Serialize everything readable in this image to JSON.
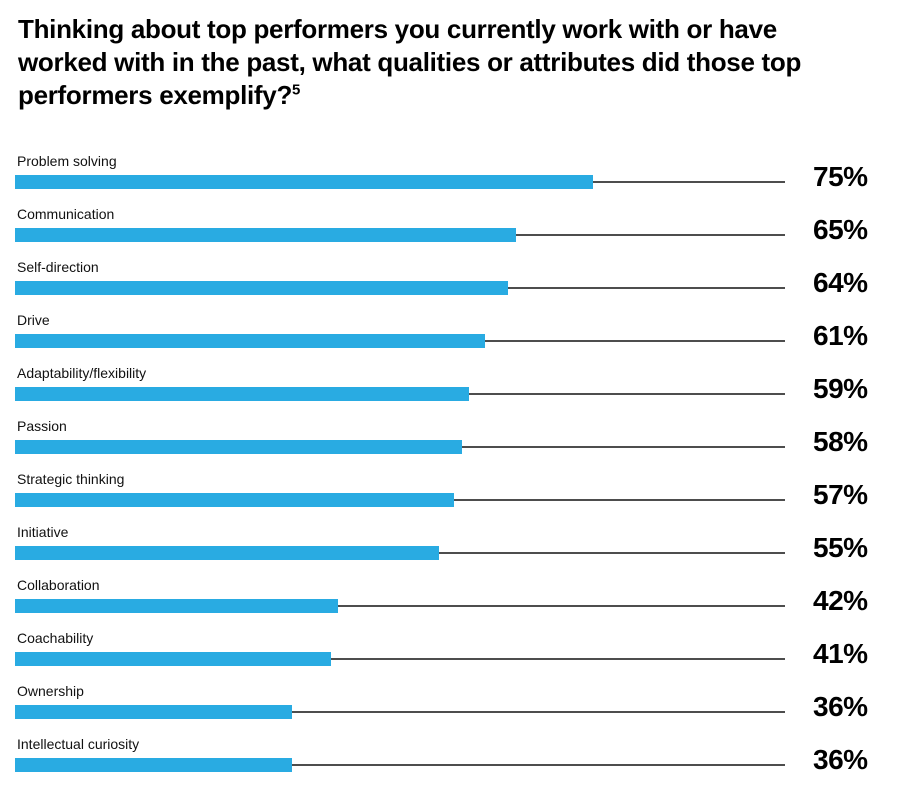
{
  "header": {
    "title_lines": [
      "Thinking about top performers you currently work with or have",
      "worked with in the past, what qualities or attributes did those top",
      "performers exemplify?"
    ],
    "footnote_marker": "5"
  },
  "colors": {
    "bar": "#29ABE2",
    "leader_line": "#4d4d4d",
    "title_text": "#000000",
    "label_text": "#111111"
  },
  "chart_data": {
    "type": "bar",
    "orientation": "horizontal",
    "title": "Thinking about top performers you currently work with or have worked with in the past, what qualities or attributes did those top performers exemplify?",
    "footnote_marker": "5",
    "categories": [
      "Problem solving",
      "Communication",
      "Self-direction",
      "Drive",
      "Adaptability/flexibility",
      "Passion",
      "Strategic thinking",
      "Initiative",
      "Collaboration",
      "Coachability",
      "Ownership",
      "Intellectual curiosity"
    ],
    "values": [
      75,
      65,
      64,
      61,
      59,
      58,
      57,
      55,
      42,
      41,
      36,
      36
    ],
    "value_suffix": "%",
    "xlim": [
      0,
      100
    ],
    "grid": false,
    "legend": false,
    "value_label_position": "right"
  }
}
